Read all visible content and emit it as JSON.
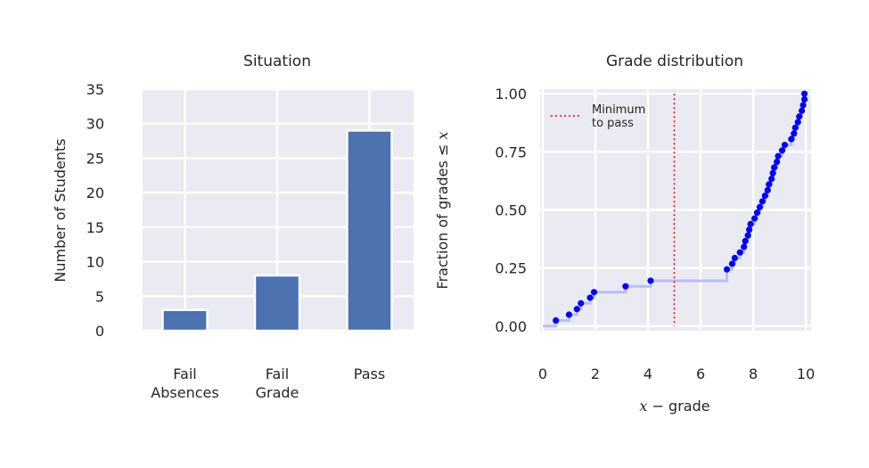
{
  "chart_data": [
    {
      "type": "bar",
      "title": "Situation",
      "xlabel": "",
      "ylabel": "Number of Students",
      "categories": [
        [
          "Fail",
          "Absences"
        ],
        [
          "Fail",
          "Grade"
        ],
        [
          "Pass"
        ]
      ],
      "values": [
        3,
        8,
        29
      ],
      "ylim": [
        0,
        35
      ],
      "yticks": [
        "0",
        "5",
        "10",
        "15",
        "20",
        "25",
        "30",
        "35"
      ],
      "bar_color": "#4c72b0",
      "grid": true
    },
    {
      "type": "line",
      "title": "Grade distribution",
      "xlabel_math": "x",
      "xlabel_text": " − grade",
      "ylabel_text": "Fraction of grades ≤ ",
      "ylabel_math": "x",
      "xlim": [
        -0.1,
        10.2
      ],
      "ylim": [
        -0.02,
        1.02
      ],
      "xticks": [
        "0",
        "2",
        "4",
        "6",
        "8",
        "10"
      ],
      "yticks": [
        "0.00",
        "0.25",
        "0.50",
        "0.75",
        "1.00"
      ],
      "threshold": {
        "x": 5,
        "label": [
          "Minimum",
          "to pass"
        ],
        "color": "#ff0000"
      },
      "legend_placement": "top-left",
      "series": [
        {
          "points": [
            [
              0.5,
              0.024
            ],
            [
              1.0,
              0.049
            ],
            [
              1.3,
              0.073
            ],
            [
              1.45,
              0.098
            ],
            [
              1.8,
              0.122
            ],
            [
              1.95,
              0.146
            ],
            [
              3.15,
              0.171
            ],
            [
              4.1,
              0.195
            ],
            [
              7.0,
              0.244
            ],
            [
              7.2,
              0.268
            ],
            [
              7.3,
              0.293
            ],
            [
              7.5,
              0.317
            ],
            [
              7.65,
              0.341
            ],
            [
              7.7,
              0.366
            ],
            [
              7.8,
              0.39
            ],
            [
              7.85,
              0.415
            ],
            [
              7.9,
              0.439
            ],
            [
              8.05,
              0.463
            ],
            [
              8.15,
              0.488
            ],
            [
              8.25,
              0.512
            ],
            [
              8.35,
              0.537
            ],
            [
              8.45,
              0.561
            ],
            [
              8.55,
              0.585
            ],
            [
              8.6,
              0.61
            ],
            [
              8.7,
              0.634
            ],
            [
              8.75,
              0.659
            ],
            [
              8.8,
              0.683
            ],
            [
              8.9,
              0.707
            ],
            [
              8.95,
              0.732
            ],
            [
              9.1,
              0.756
            ],
            [
              9.2,
              0.78
            ],
            [
              9.45,
              0.805
            ],
            [
              9.55,
              0.829
            ],
            [
              9.6,
              0.854
            ],
            [
              9.7,
              0.878
            ],
            [
              9.75,
              0.902
            ],
            [
              9.85,
              0.927
            ],
            [
              9.9,
              0.951
            ],
            [
              9.95,
              0.976
            ],
            [
              9.95,
              1.0
            ]
          ],
          "point_color": "#0000ff",
          "step_color": "#bcbcf5"
        }
      ],
      "grid": true
    }
  ]
}
